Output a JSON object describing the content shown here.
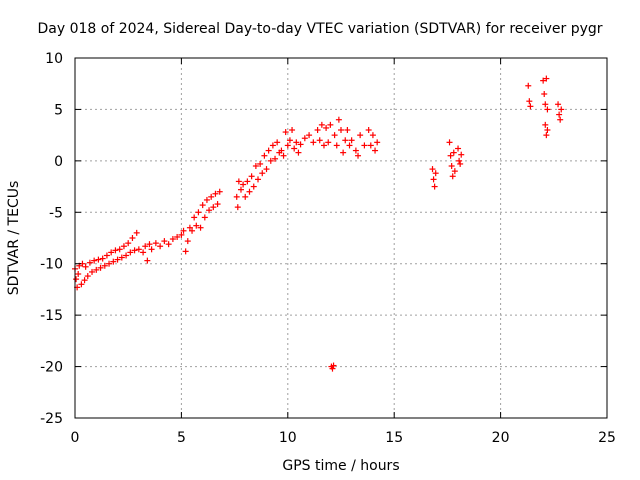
{
  "chart_data": {
    "type": "scatter",
    "title": "Day 018 of 2024, Sidereal Day-to-day VTEC variation (SDTVAR) for receiver pygr",
    "xlabel": "GPS time / hours",
    "ylabel": "SDTVAR / TECUs",
    "xlim": [
      0,
      25
    ],
    "ylim": [
      -25,
      10
    ],
    "xticks": [
      0,
      5,
      10,
      15,
      20,
      25
    ],
    "yticks": [
      -25,
      -20,
      -15,
      -10,
      -5,
      0,
      5,
      10
    ],
    "xtick_labels": [
      "0",
      "5",
      "10",
      "15",
      "20",
      "25"
    ],
    "ytick_labels": [
      "-25",
      "-20",
      "-15",
      "-10",
      "-5",
      "0",
      "5",
      "10"
    ],
    "grid": true,
    "marker": "plus",
    "color": "#ff0000",
    "series": [
      {
        "name": "SDTVAR",
        "points": [
          [
            0.0,
            -10.5
          ],
          [
            0.05,
            -11.5
          ],
          [
            0.1,
            -12.3
          ],
          [
            0.15,
            -11.0
          ],
          [
            0.2,
            -10.2
          ],
          [
            0.3,
            -12.0
          ],
          [
            0.35,
            -10.0
          ],
          [
            0.45,
            -11.6
          ],
          [
            0.5,
            -10.3
          ],
          [
            0.6,
            -11.2
          ],
          [
            0.7,
            -9.9
          ],
          [
            0.8,
            -10.8
          ],
          [
            0.9,
            -9.7
          ],
          [
            1.0,
            -10.6
          ],
          [
            1.1,
            -9.6
          ],
          [
            1.2,
            -10.4
          ],
          [
            1.3,
            -9.5
          ],
          [
            1.4,
            -10.2
          ],
          [
            1.5,
            -9.2
          ],
          [
            1.6,
            -10.0
          ],
          [
            1.7,
            -8.9
          ],
          [
            1.8,
            -9.8
          ],
          [
            1.9,
            -8.7
          ],
          [
            2.0,
            -9.6
          ],
          [
            2.1,
            -8.6
          ],
          [
            2.2,
            -9.4
          ],
          [
            2.3,
            -8.3
          ],
          [
            2.4,
            -9.2
          ],
          [
            2.5,
            -8.0
          ],
          [
            2.6,
            -8.9
          ],
          [
            2.7,
            -7.5
          ],
          [
            2.8,
            -8.7
          ],
          [
            2.9,
            -7.0
          ],
          [
            3.0,
            -8.6
          ],
          [
            3.2,
            -8.9
          ],
          [
            3.3,
            -8.3
          ],
          [
            3.4,
            -9.7
          ],
          [
            3.5,
            -8.1
          ],
          [
            3.6,
            -8.6
          ],
          [
            3.8,
            -8.0
          ],
          [
            4.0,
            -8.3
          ],
          [
            4.2,
            -7.8
          ],
          [
            4.4,
            -8.1
          ],
          [
            4.6,
            -7.6
          ],
          [
            4.8,
            -7.4
          ],
          [
            5.0,
            -7.2
          ],
          [
            5.1,
            -6.8
          ],
          [
            5.2,
            -8.8
          ],
          [
            5.3,
            -7.8
          ],
          [
            5.4,
            -6.5
          ],
          [
            5.5,
            -6.8
          ],
          [
            5.6,
            -5.5
          ],
          [
            5.7,
            -6.3
          ],
          [
            5.8,
            -5.0
          ],
          [
            5.9,
            -6.5
          ],
          [
            6.0,
            -4.3
          ],
          [
            6.1,
            -5.5
          ],
          [
            6.2,
            -3.8
          ],
          [
            6.3,
            -4.8
          ],
          [
            6.4,
            -3.5
          ],
          [
            6.5,
            -4.5
          ],
          [
            6.6,
            -3.2
          ],
          [
            6.7,
            -4.2
          ],
          [
            6.8,
            -3.0
          ],
          [
            7.6,
            -3.5
          ],
          [
            7.65,
            -4.5
          ],
          [
            7.7,
            -2.0
          ],
          [
            7.8,
            -2.8
          ],
          [
            7.9,
            -2.3
          ],
          [
            8.0,
            -3.5
          ],
          [
            8.1,
            -2.0
          ],
          [
            8.2,
            -3.0
          ],
          [
            8.3,
            -1.5
          ],
          [
            8.4,
            -2.5
          ],
          [
            8.5,
            -0.5
          ],
          [
            8.6,
            -1.8
          ],
          [
            8.7,
            -0.3
          ],
          [
            8.8,
            -1.2
          ],
          [
            8.9,
            0.5
          ],
          [
            9.0,
            -0.8
          ],
          [
            9.1,
            1.0
          ],
          [
            9.2,
            0.0
          ],
          [
            9.3,
            1.5
          ],
          [
            9.4,
            0.2
          ],
          [
            9.5,
            1.8
          ],
          [
            9.6,
            0.8
          ],
          [
            9.7,
            1.0
          ],
          [
            9.8,
            0.5
          ],
          [
            9.9,
            2.8
          ],
          [
            10.0,
            1.5
          ],
          [
            10.1,
            2.0
          ],
          [
            10.2,
            3.0
          ],
          [
            10.3,
            1.2
          ],
          [
            10.4,
            1.8
          ],
          [
            10.5,
            0.8
          ],
          [
            10.6,
            1.6
          ],
          [
            10.8,
            2.2
          ],
          [
            11.0,
            2.5
          ],
          [
            11.2,
            1.8
          ],
          [
            11.4,
            3.0
          ],
          [
            11.5,
            2.0
          ],
          [
            11.6,
            3.5
          ],
          [
            11.7,
            1.5
          ],
          [
            11.8,
            3.2
          ],
          [
            11.9,
            1.8
          ],
          [
            12.0,
            3.5
          ],
          [
            12.05,
            -20.0
          ],
          [
            12.1,
            -20.2
          ],
          [
            12.15,
            -19.9
          ],
          [
            12.2,
            2.5
          ],
          [
            12.3,
            1.5
          ],
          [
            12.4,
            4.0
          ],
          [
            12.5,
            3.0
          ],
          [
            12.6,
            0.8
          ],
          [
            12.7,
            2.0
          ],
          [
            12.8,
            3.0
          ],
          [
            12.9,
            1.5
          ],
          [
            13.0,
            2.0
          ],
          [
            13.2,
            1.0
          ],
          [
            13.3,
            0.5
          ],
          [
            13.4,
            2.5
          ],
          [
            13.6,
            1.5
          ],
          [
            13.8,
            3.0
          ],
          [
            13.9,
            1.5
          ],
          [
            14.0,
            2.5
          ],
          [
            14.1,
            1.0
          ],
          [
            14.2,
            1.8
          ],
          [
            16.8,
            -0.8
          ],
          [
            16.85,
            -1.8
          ],
          [
            16.9,
            -2.5
          ],
          [
            16.95,
            -1.2
          ],
          [
            17.6,
            1.8
          ],
          [
            17.65,
            0.5
          ],
          [
            17.7,
            -0.5
          ],
          [
            17.75,
            -1.5
          ],
          [
            17.8,
            0.8
          ],
          [
            17.85,
            -1.0
          ],
          [
            18.0,
            1.2
          ],
          [
            18.05,
            0.0
          ],
          [
            18.1,
            -0.3
          ],
          [
            18.15,
            0.6
          ],
          [
            21.3,
            7.3
          ],
          [
            21.35,
            5.8
          ],
          [
            21.4,
            5.3
          ],
          [
            22.0,
            7.8
          ],
          [
            22.05,
            6.5
          ],
          [
            22.1,
            5.5
          ],
          [
            22.15,
            8.0
          ],
          [
            22.2,
            5.0
          ],
          [
            22.1,
            3.5
          ],
          [
            22.15,
            2.5
          ],
          [
            22.2,
            3.0
          ],
          [
            22.7,
            5.5
          ],
          [
            22.75,
            4.5
          ],
          [
            22.8,
            4.0
          ],
          [
            22.85,
            5.0
          ]
        ]
      }
    ]
  }
}
